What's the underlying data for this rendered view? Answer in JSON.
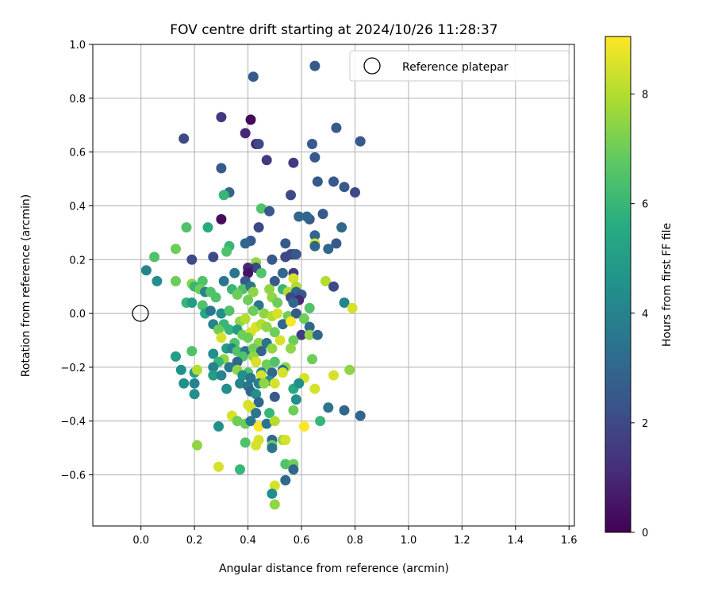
{
  "chart_data": {
    "type": "scatter",
    "title": "FOV centre drift starting at 2024/10/26 11:28:37",
    "xlabel": "Angular distance from reference (arcmin)",
    "ylabel": "Rotation from reference (arcmin)",
    "xlim": [
      -0.18,
      1.62
    ],
    "ylim": [
      -0.79,
      1.0
    ],
    "xticks": [
      0.0,
      0.2,
      0.4,
      0.6,
      0.8,
      1.0,
      1.2,
      1.4,
      1.6
    ],
    "yticks": [
      -0.6,
      -0.4,
      -0.2,
      0.0,
      0.2,
      0.4,
      0.6,
      0.8,
      1.0
    ],
    "xtick_labels": [
      "0.0",
      "0.2",
      "0.4",
      "0.6",
      "0.8",
      "1.0",
      "1.2",
      "1.4",
      "1.6"
    ],
    "ytick_labels": [
      "−0.6",
      "−0.4",
      "−0.2",
      "0.0",
      "0.2",
      "0.4",
      "0.6",
      "0.8",
      "1.0"
    ],
    "grid": true,
    "legend": {
      "position": "upper-right",
      "entries": [
        "Reference platepar"
      ]
    },
    "reference_point": {
      "name": "Reference platepar",
      "x": 0.0,
      "y": 0.0
    },
    "colorbar": {
      "label": "Hours from first FF file",
      "range": [
        0,
        9.05
      ],
      "ticks": [
        0,
        2,
        4,
        6,
        8
      ],
      "tick_labels": [
        "0",
        "2",
        "4",
        "6",
        "8"
      ],
      "colormap": "viridis"
    },
    "points": [
      {
        "x": 0.65,
        "y": 0.92,
        "h": 2.5
      },
      {
        "x": 0.42,
        "y": 0.88,
        "h": 2.5
      },
      {
        "x": 0.41,
        "y": 0.72,
        "h": 0.2
      },
      {
        "x": 0.3,
        "y": 0.73,
        "h": 1.5
      },
      {
        "x": 0.73,
        "y": 0.69,
        "h": 2.5
      },
      {
        "x": 0.39,
        "y": 0.67,
        "h": 1.0
      },
      {
        "x": 0.16,
        "y": 0.65,
        "h": 2.0
      },
      {
        "x": 0.43,
        "y": 0.63,
        "h": 1.0
      },
      {
        "x": 0.44,
        "y": 0.63,
        "h": 2.0
      },
      {
        "x": 0.64,
        "y": 0.63,
        "h": 2.5
      },
      {
        "x": 0.82,
        "y": 0.64,
        "h": 2.5
      },
      {
        "x": 0.65,
        "y": 0.58,
        "h": 2.5
      },
      {
        "x": 0.47,
        "y": 0.57,
        "h": 1.5
      },
      {
        "x": 0.57,
        "y": 0.56,
        "h": 1.5
      },
      {
        "x": 0.3,
        "y": 0.54,
        "h": 2.5
      },
      {
        "x": 0.66,
        "y": 0.49,
        "h": 2.5
      },
      {
        "x": 0.72,
        "y": 0.49,
        "h": 2.5
      },
      {
        "x": 0.76,
        "y": 0.47,
        "h": 2.5
      },
      {
        "x": 0.8,
        "y": 0.45,
        "h": 2.0
      },
      {
        "x": 0.33,
        "y": 0.45,
        "h": 3.0
      },
      {
        "x": 0.31,
        "y": 0.44,
        "h": 6.0
      },
      {
        "x": 0.56,
        "y": 0.44,
        "h": 2.0
      },
      {
        "x": 0.45,
        "y": 0.39,
        "h": 6.5
      },
      {
        "x": 0.48,
        "y": 0.38,
        "h": 2.5
      },
      {
        "x": 0.59,
        "y": 0.36,
        "h": 3.0
      },
      {
        "x": 0.63,
        "y": 0.35,
        "h": 2.5
      },
      {
        "x": 0.62,
        "y": 0.36,
        "h": 3.0
      },
      {
        "x": 0.68,
        "y": 0.37,
        "h": 2.5
      },
      {
        "x": 0.3,
        "y": 0.35,
        "h": 0.3
      },
      {
        "x": 0.25,
        "y": 0.32,
        "h": 5.5
      },
      {
        "x": 0.17,
        "y": 0.32,
        "h": 6.5
      },
      {
        "x": 0.44,
        "y": 0.32,
        "h": 2.0
      },
      {
        "x": 0.75,
        "y": 0.32,
        "h": 3.0
      },
      {
        "x": 0.65,
        "y": 0.29,
        "h": 3.0
      },
      {
        "x": 0.41,
        "y": 0.27,
        "h": 2.5
      },
      {
        "x": 0.39,
        "y": 0.26,
        "h": 3.0
      },
      {
        "x": 0.33,
        "y": 0.25,
        "h": 6.0
      },
      {
        "x": 0.32,
        "y": 0.23,
        "h": 6.5
      },
      {
        "x": 0.54,
        "y": 0.26,
        "h": 2.5
      },
      {
        "x": 0.65,
        "y": 0.26,
        "h": 8.5
      },
      {
        "x": 0.65,
        "y": 0.25,
        "h": 3.0
      },
      {
        "x": 0.7,
        "y": 0.24,
        "h": 3.0
      },
      {
        "x": 0.73,
        "y": 0.26,
        "h": 2.5
      },
      {
        "x": 0.13,
        "y": 0.24,
        "h": 7.0
      },
      {
        "x": 0.57,
        "y": 0.22,
        "h": 2.0
      },
      {
        "x": 0.56,
        "y": 0.22,
        "h": 2.0
      },
      {
        "x": 0.58,
        "y": 0.22,
        "h": 2.5
      },
      {
        "x": 0.54,
        "y": 0.21,
        "h": 2.0
      },
      {
        "x": 0.27,
        "y": 0.21,
        "h": 2.0
      },
      {
        "x": 0.05,
        "y": 0.21,
        "h": 6.5
      },
      {
        "x": 0.19,
        "y": 0.2,
        "h": 2.0
      },
      {
        "x": 0.49,
        "y": 0.2,
        "h": 2.5
      },
      {
        "x": 0.43,
        "y": 0.19,
        "h": 7.5
      },
      {
        "x": 0.43,
        "y": 0.17,
        "h": 2.0
      },
      {
        "x": 0.4,
        "y": 0.17,
        "h": 1.0
      },
      {
        "x": 0.4,
        "y": 0.15,
        "h": 0.5
      },
      {
        "x": 0.45,
        "y": 0.15,
        "h": 6.5
      },
      {
        "x": 0.35,
        "y": 0.15,
        "h": 3.5
      },
      {
        "x": 0.53,
        "y": 0.15,
        "h": 3.0
      },
      {
        "x": 0.57,
        "y": 0.15,
        "h": 1.5
      },
      {
        "x": 0.02,
        "y": 0.16,
        "h": 4.0
      },
      {
        "x": 0.06,
        "y": 0.12,
        "h": 4.5
      },
      {
        "x": 0.13,
        "y": 0.12,
        "h": 7.0
      },
      {
        "x": 0.19,
        "y": 0.11,
        "h": 7.5
      },
      {
        "x": 0.23,
        "y": 0.12,
        "h": 6.5
      },
      {
        "x": 0.31,
        "y": 0.12,
        "h": 3.5
      },
      {
        "x": 0.39,
        "y": 0.12,
        "h": 2.5
      },
      {
        "x": 0.5,
        "y": 0.12,
        "h": 2.5
      },
      {
        "x": 0.57,
        "y": 0.13,
        "h": 8.5
      },
      {
        "x": 0.58,
        "y": 0.1,
        "h": 8.0
      },
      {
        "x": 0.69,
        "y": 0.12,
        "h": 8.0
      },
      {
        "x": 0.72,
        "y": 0.1,
        "h": 2.0
      },
      {
        "x": 0.2,
        "y": 0.1,
        "h": 6.0
      },
      {
        "x": 0.22,
        "y": 0.09,
        "h": 7.0
      },
      {
        "x": 0.24,
        "y": 0.08,
        "h": 4.0
      },
      {
        "x": 0.26,
        "y": 0.08,
        "h": 6.5
      },
      {
        "x": 0.34,
        "y": 0.09,
        "h": 6.0
      },
      {
        "x": 0.38,
        "y": 0.09,
        "h": 6.5
      },
      {
        "x": 0.41,
        "y": 0.1,
        "h": 3.5
      },
      {
        "x": 0.42,
        "y": 0.08,
        "h": 7.5
      },
      {
        "x": 0.48,
        "y": 0.09,
        "h": 7.5
      },
      {
        "x": 0.53,
        "y": 0.09,
        "h": 6.0
      },
      {
        "x": 0.55,
        "y": 0.08,
        "h": 8.0
      },
      {
        "x": 0.58,
        "y": 0.08,
        "h": 3.0
      },
      {
        "x": 0.6,
        "y": 0.07,
        "h": 2.5
      },
      {
        "x": 0.28,
        "y": 0.06,
        "h": 6.5
      },
      {
        "x": 0.36,
        "y": 0.07,
        "h": 7.0
      },
      {
        "x": 0.49,
        "y": 0.06,
        "h": 7.5
      },
      {
        "x": 0.56,
        "y": 0.06,
        "h": 2.0
      },
      {
        "x": 0.59,
        "y": 0.05,
        "h": 1.0
      },
      {
        "x": 0.17,
        "y": 0.04,
        "h": 6.0
      },
      {
        "x": 0.19,
        "y": 0.04,
        "h": 5.0
      },
      {
        "x": 0.23,
        "y": 0.03,
        "h": 6.5
      },
      {
        "x": 0.4,
        "y": 0.05,
        "h": 7.0
      },
      {
        "x": 0.44,
        "y": 0.03,
        "h": 3.5
      },
      {
        "x": 0.51,
        "y": 0.04,
        "h": 7.0
      },
      {
        "x": 0.57,
        "y": 0.04,
        "h": 3.0
      },
      {
        "x": 0.63,
        "y": 0.02,
        "h": 6.5
      },
      {
        "x": 0.76,
        "y": 0.04,
        "h": 4.0
      },
      {
        "x": 0.79,
        "y": 0.02,
        "h": 8.5
      },
      {
        "x": 0.24,
        "y": 0.0,
        "h": 5.5
      },
      {
        "x": 0.26,
        "y": 0.01,
        "h": 3.5
      },
      {
        "x": 0.3,
        "y": 0.0,
        "h": 4.5
      },
      {
        "x": 0.33,
        "y": 0.01,
        "h": 6.5
      },
      {
        "x": 0.42,
        "y": 0.01,
        "h": 7.0
      },
      {
        "x": 0.46,
        "y": 0.0,
        "h": 7.5
      },
      {
        "x": 0.49,
        "y": -0.01,
        "h": 8.0
      },
      {
        "x": 0.51,
        "y": 0.0,
        "h": 8.5
      },
      {
        "x": 0.55,
        "y": -0.01,
        "h": 7.0
      },
      {
        "x": 0.58,
        "y": 0.0,
        "h": 2.5
      },
      {
        "x": 0.61,
        "y": -0.02,
        "h": 7.0
      },
      {
        "x": 0.27,
        "y": -0.04,
        "h": 4.0
      },
      {
        "x": 0.31,
        "y": -0.04,
        "h": 6.0
      },
      {
        "x": 0.37,
        "y": -0.03,
        "h": 7.5
      },
      {
        "x": 0.39,
        "y": -0.02,
        "h": 8.0
      },
      {
        "x": 0.43,
        "y": -0.05,
        "h": 8.5
      },
      {
        "x": 0.45,
        "y": -0.04,
        "h": 8.0
      },
      {
        "x": 0.47,
        "y": -0.05,
        "h": 7.5
      },
      {
        "x": 0.53,
        "y": -0.04,
        "h": 3.0
      },
      {
        "x": 0.56,
        "y": -0.03,
        "h": 9.0
      },
      {
        "x": 0.63,
        "y": -0.05,
        "h": 3.0
      },
      {
        "x": 0.29,
        "y": -0.06,
        "h": 7.0
      },
      {
        "x": 0.33,
        "y": -0.06,
        "h": 6.0
      },
      {
        "x": 0.36,
        "y": -0.06,
        "h": 5.0
      },
      {
        "x": 0.38,
        "y": -0.08,
        "h": 7.0
      },
      {
        "x": 0.41,
        "y": -0.07,
        "h": 8.5
      },
      {
        "x": 0.5,
        "y": -0.07,
        "h": 7.0
      },
      {
        "x": 0.6,
        "y": -0.08,
        "h": 1.5
      },
      {
        "x": 0.63,
        "y": -0.08,
        "h": 7.5
      },
      {
        "x": 0.66,
        "y": -0.08,
        "h": 3.0
      },
      {
        "x": 0.3,
        "y": -0.09,
        "h": 8.5
      },
      {
        "x": 0.35,
        "y": -0.11,
        "h": 6.5
      },
      {
        "x": 0.4,
        "y": -0.09,
        "h": 7.0
      },
      {
        "x": 0.44,
        "y": -0.11,
        "h": 7.5
      },
      {
        "x": 0.47,
        "y": -0.11,
        "h": 3.5
      },
      {
        "x": 0.52,
        "y": -0.1,
        "h": 8.5
      },
      {
        "x": 0.57,
        "y": -0.1,
        "h": 7.0
      },
      {
        "x": 0.32,
        "y": -0.13,
        "h": 5.0
      },
      {
        "x": 0.34,
        "y": -0.13,
        "h": 4.0
      },
      {
        "x": 0.36,
        "y": -0.14,
        "h": 6.5
      },
      {
        "x": 0.39,
        "y": -0.14,
        "h": 3.5
      },
      {
        "x": 0.42,
        "y": -0.13,
        "h": 7.0
      },
      {
        "x": 0.45,
        "y": -0.14,
        "h": 3.0
      },
      {
        "x": 0.49,
        "y": -0.13,
        "h": 7.5
      },
      {
        "x": 0.56,
        "y": -0.13,
        "h": 7.5
      },
      {
        "x": 0.19,
        "y": -0.14,
        "h": 6.5
      },
      {
        "x": 0.13,
        "y": -0.16,
        "h": 5.0
      },
      {
        "x": 0.27,
        "y": -0.15,
        "h": 4.5
      },
      {
        "x": 0.38,
        "y": -0.16,
        "h": 6.5
      },
      {
        "x": 0.42,
        "y": -0.16,
        "h": 7.5
      },
      {
        "x": 0.31,
        "y": -0.17,
        "h": 7.5
      },
      {
        "x": 0.29,
        "y": -0.18,
        "h": 6.0
      },
      {
        "x": 0.36,
        "y": -0.18,
        "h": 3.0
      },
      {
        "x": 0.43,
        "y": -0.18,
        "h": 8.5
      },
      {
        "x": 0.47,
        "y": -0.19,
        "h": 7.0
      },
      {
        "x": 0.5,
        "y": -0.18,
        "h": 6.5
      },
      {
        "x": 0.54,
        "y": -0.2,
        "h": 7.5
      },
      {
        "x": 0.64,
        "y": -0.17,
        "h": 7.0
      },
      {
        "x": 0.15,
        "y": -0.21,
        "h": 4.5
      },
      {
        "x": 0.2,
        "y": -0.22,
        "h": 5.0
      },
      {
        "x": 0.21,
        "y": -0.21,
        "h": 8.0
      },
      {
        "x": 0.27,
        "y": -0.2,
        "h": 4.0
      },
      {
        "x": 0.33,
        "y": -0.2,
        "h": 3.5
      },
      {
        "x": 0.36,
        "y": -0.21,
        "h": 7.5
      },
      {
        "x": 0.4,
        "y": -0.22,
        "h": 6.5
      },
      {
        "x": 0.45,
        "y": -0.22,
        "h": 4.0
      },
      {
        "x": 0.49,
        "y": -0.22,
        "h": 3.0
      },
      {
        "x": 0.53,
        "y": -0.21,
        "h": 3.5
      },
      {
        "x": 0.27,
        "y": -0.23,
        "h": 5.0
      },
      {
        "x": 0.3,
        "y": -0.23,
        "h": 4.0
      },
      {
        "x": 0.38,
        "y": -0.23,
        "h": 4.5
      },
      {
        "x": 0.41,
        "y": -0.24,
        "h": 3.5
      },
      {
        "x": 0.45,
        "y": -0.23,
        "h": 8.5
      },
      {
        "x": 0.48,
        "y": -0.25,
        "h": 4.5
      },
      {
        "x": 0.53,
        "y": -0.22,
        "h": 8.5
      },
      {
        "x": 0.61,
        "y": -0.24,
        "h": 8.5
      },
      {
        "x": 0.72,
        "y": -0.23,
        "h": 8.5
      },
      {
        "x": 0.78,
        "y": -0.21,
        "h": 7.5
      },
      {
        "x": 0.16,
        "y": -0.26,
        "h": 4.5
      },
      {
        "x": 0.2,
        "y": -0.26,
        "h": 4.0
      },
      {
        "x": 0.37,
        "y": -0.26,
        "h": 4.0
      },
      {
        "x": 0.4,
        "y": -0.27,
        "h": 3.5
      },
      {
        "x": 0.44,
        "y": -0.26,
        "h": 4.0
      },
      {
        "x": 0.46,
        "y": -0.26,
        "h": 7.5
      },
      {
        "x": 0.5,
        "y": -0.26,
        "h": 8.5
      },
      {
        "x": 0.57,
        "y": -0.28,
        "h": 5.5
      },
      {
        "x": 0.59,
        "y": -0.26,
        "h": 4.5
      },
      {
        "x": 0.65,
        "y": -0.28,
        "h": 8.5
      },
      {
        "x": 0.2,
        "y": -0.3,
        "h": 4.5
      },
      {
        "x": 0.32,
        "y": -0.28,
        "h": 4.5
      },
      {
        "x": 0.41,
        "y": -0.29,
        "h": 3.0
      },
      {
        "x": 0.43,
        "y": -0.3,
        "h": 4.5
      },
      {
        "x": 0.5,
        "y": -0.31,
        "h": 2.5
      },
      {
        "x": 0.58,
        "y": -0.32,
        "h": 4.5
      },
      {
        "x": 0.44,
        "y": -0.33,
        "h": 3.0
      },
      {
        "x": 0.4,
        "y": -0.34,
        "h": 8.5
      },
      {
        "x": 0.41,
        "y": -0.35,
        "h": 8.5
      },
      {
        "x": 0.57,
        "y": -0.36,
        "h": 7.0
      },
      {
        "x": 0.48,
        "y": -0.37,
        "h": 6.0
      },
      {
        "x": 0.43,
        "y": -0.37,
        "h": 3.5
      },
      {
        "x": 0.76,
        "y": -0.36,
        "h": 3.0
      },
      {
        "x": 0.7,
        "y": -0.35,
        "h": 3.5
      },
      {
        "x": 0.82,
        "y": -0.38,
        "h": 3.0
      },
      {
        "x": 0.34,
        "y": -0.38,
        "h": 8.5
      },
      {
        "x": 0.36,
        "y": -0.4,
        "h": 7.0
      },
      {
        "x": 0.39,
        "y": -0.41,
        "h": 7.0
      },
      {
        "x": 0.41,
        "y": -0.4,
        "h": 3.5
      },
      {
        "x": 0.44,
        "y": -0.42,
        "h": 9.0
      },
      {
        "x": 0.47,
        "y": -0.41,
        "h": 3.5
      },
      {
        "x": 0.5,
        "y": -0.4,
        "h": 8.0
      },
      {
        "x": 0.67,
        "y": -0.4,
        "h": 6.0
      },
      {
        "x": 0.61,
        "y": -0.42,
        "h": 9.0
      },
      {
        "x": 0.29,
        "y": -0.42,
        "h": 4.5
      },
      {
        "x": 0.44,
        "y": -0.47,
        "h": 8.5
      },
      {
        "x": 0.49,
        "y": -0.47,
        "h": 3.0
      },
      {
        "x": 0.53,
        "y": -0.47,
        "h": 7.5
      },
      {
        "x": 0.54,
        "y": -0.47,
        "h": 8.5
      },
      {
        "x": 0.43,
        "y": -0.49,
        "h": 8.5
      },
      {
        "x": 0.39,
        "y": -0.48,
        "h": 6.5
      },
      {
        "x": 0.49,
        "y": -0.49,
        "h": 7.0
      },
      {
        "x": 0.49,
        "y": -0.5,
        "h": 3.5
      },
      {
        "x": 0.21,
        "y": -0.49,
        "h": 7.5
      },
      {
        "x": 0.54,
        "y": -0.56,
        "h": 6.5
      },
      {
        "x": 0.57,
        "y": -0.56,
        "h": 7.0
      },
      {
        "x": 0.57,
        "y": -0.58,
        "h": 3.0
      },
      {
        "x": 0.29,
        "y": -0.57,
        "h": 8.5
      },
      {
        "x": 0.37,
        "y": -0.58,
        "h": 6.0
      },
      {
        "x": 0.54,
        "y": -0.62,
        "h": 3.0
      },
      {
        "x": 0.5,
        "y": -0.64,
        "h": 8.5
      },
      {
        "x": 0.49,
        "y": -0.67,
        "h": 4.5
      },
      {
        "x": 0.5,
        "y": -0.71,
        "h": 7.5
      }
    ]
  }
}
